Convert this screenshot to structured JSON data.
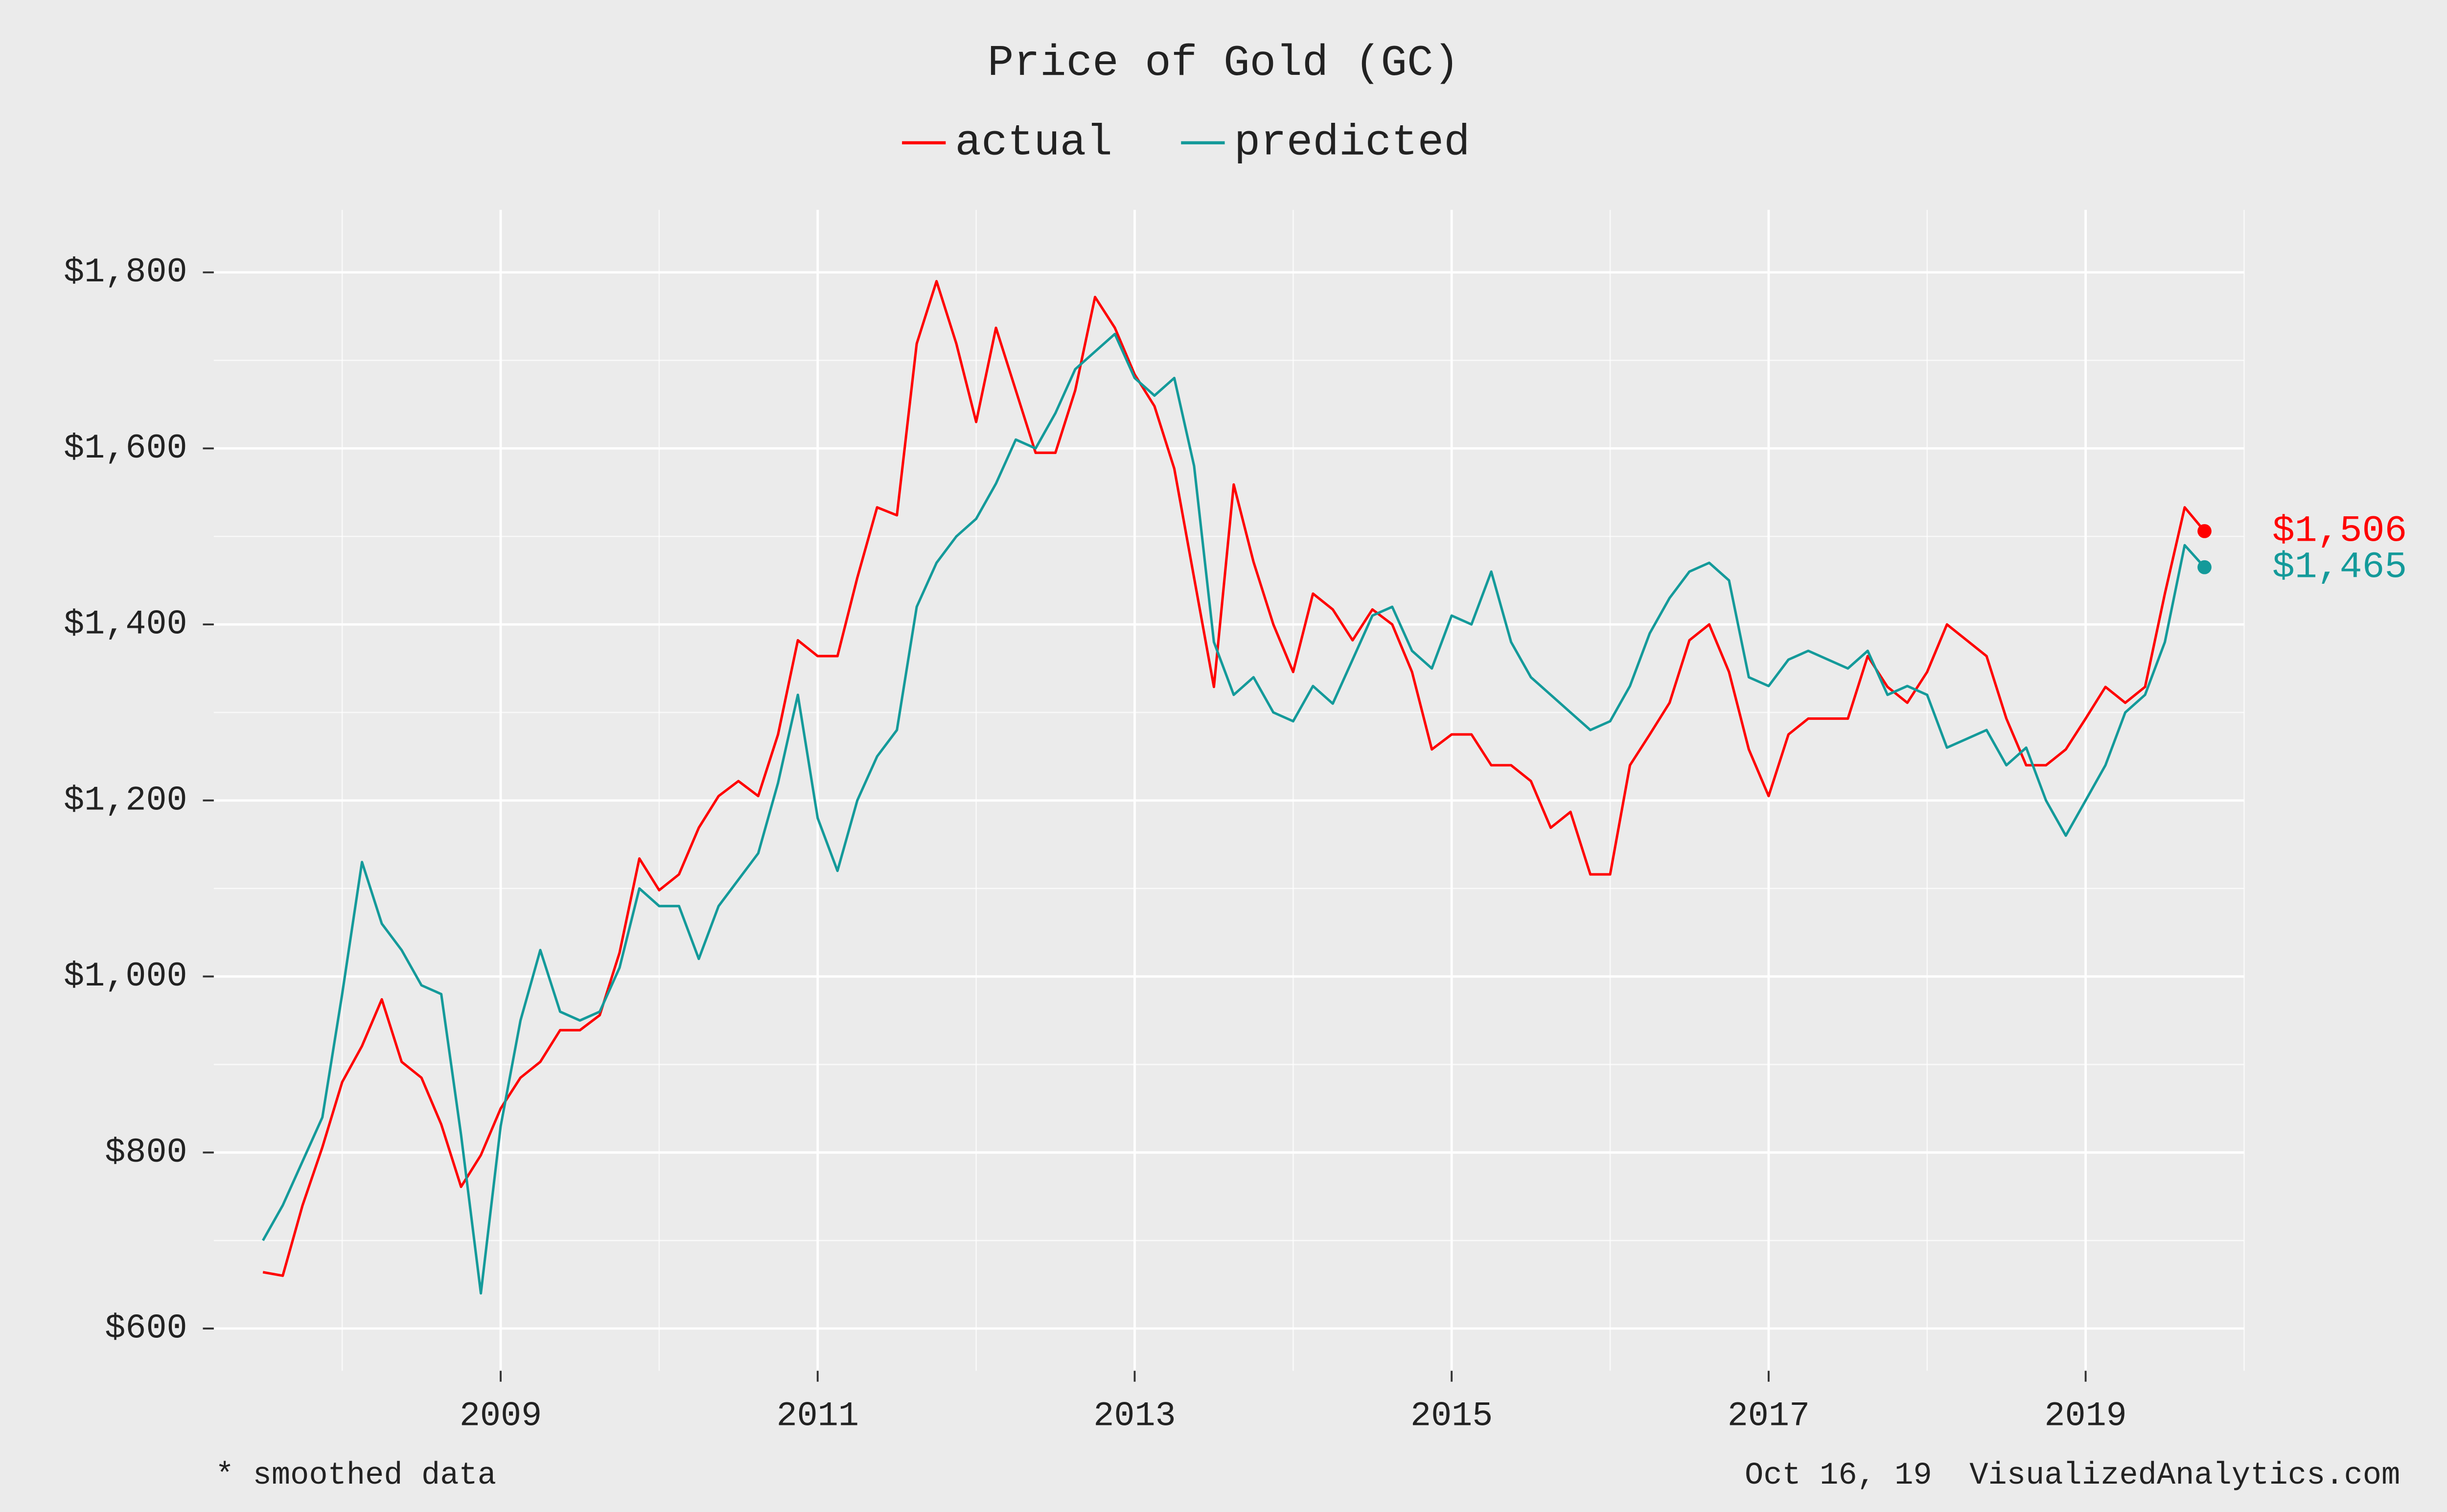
{
  "chart_data": {
    "type": "line",
    "title": "Price of Gold (GC)",
    "footnote": "* smoothed data",
    "credit": "Oct 16, 19  VisualizedAnalytics.com",
    "x": [
      2007.5,
      2007.625,
      2007.75,
      2007.875,
      2008,
      2008.125,
      2008.25,
      2008.375,
      2008.5,
      2008.625,
      2008.75,
      2008.875,
      2009,
      2009.125,
      2009.25,
      2009.375,
      2009.5,
      2009.625,
      2009.75,
      2009.875,
      2010,
      2010.125,
      2010.25,
      2010.375,
      2010.5,
      2010.625,
      2010.75,
      2010.875,
      2011,
      2011.125,
      2011.25,
      2011.375,
      2011.5,
      2011.625,
      2011.75,
      2011.875,
      2012,
      2012.125,
      2012.25,
      2012.375,
      2012.5,
      2012.625,
      2012.75,
      2012.875,
      2013,
      2013.125,
      2013.25,
      2013.375,
      2013.5,
      2013.625,
      2013.75,
      2013.875,
      2014,
      2014.125,
      2014.25,
      2014.375,
      2014.5,
      2014.625,
      2014.75,
      2014.875,
      2015,
      2015.125,
      2015.25,
      2015.375,
      2015.5,
      2015.625,
      2015.75,
      2015.875,
      2016,
      2016.125,
      2016.25,
      2016.375,
      2016.5,
      2016.625,
      2016.75,
      2016.875,
      2017,
      2017.125,
      2017.25,
      2017.375,
      2017.5,
      2017.625,
      2017.75,
      2017.875,
      2018,
      2018.125,
      2018.25,
      2018.375,
      2018.5,
      2018.625,
      2018.75,
      2018.875,
      2019,
      2019.125,
      2019.25,
      2019.375,
      2019.5,
      2019.625,
      2019.75
    ],
    "series": [
      {
        "name": "actual",
        "color": "#ff0000",
        "end_label": "$1,506",
        "values": [
          664,
          660,
          740,
          806,
          880,
          921,
          974,
          903,
          885,
          832,
          761,
          797,
          850,
          885,
          903,
          939,
          939,
          956,
          1027,
          1134,
          1098,
          1116,
          1169,
          1205,
          1222,
          1205,
          1275,
          1382,
          1364,
          1364,
          1453,
          1533,
          1524,
          1719,
          1790,
          1719,
          1630,
          1737,
          1666,
          1595,
          1595,
          1666,
          1772,
          1737,
          1684,
          1648,
          1577,
          1453,
          1329,
          1559,
          1471,
          1400,
          1346,
          1435,
          1417,
          1382,
          1417,
          1400,
          1346,
          1258,
          1275,
          1275,
          1240,
          1240,
          1222,
          1169,
          1187,
          1116,
          1116,
          1240,
          1275,
          1311,
          1382,
          1400,
          1346,
          1258,
          1205,
          1275,
          1293,
          1293,
          1293,
          1364,
          1329,
          1311,
          1346,
          1400,
          1382,
          1364,
          1293,
          1240,
          1240,
          1258,
          1293,
          1329,
          1311,
          1329,
          1435,
          1533,
          1506
        ]
      },
      {
        "name": "predicted",
        "color": "#149a9a",
        "end_label": "$1,465",
        "values": [
          700,
          740,
          790,
          840,
          980,
          1130,
          1060,
          1030,
          990,
          980,
          820,
          640,
          830,
          950,
          1030,
          960,
          950,
          960,
          1010,
          1100,
          1080,
          1080,
          1020,
          1080,
          1110,
          1140,
          1220,
          1320,
          1180,
          1120,
          1200,
          1250,
          1280,
          1420,
          1470,
          1500,
          1520,
          1560,
          1610,
          1600,
          1640,
          1690,
          1710,
          1730,
          1680,
          1660,
          1680,
          1580,
          1380,
          1320,
          1340,
          1300,
          1290,
          1330,
          1310,
          1360,
          1410,
          1420,
          1370,
          1350,
          1410,
          1400,
          1460,
          1380,
          1340,
          1320,
          1300,
          1280,
          1290,
          1330,
          1390,
          1430,
          1460,
          1470,
          1450,
          1340,
          1330,
          1360,
          1370,
          1360,
          1350,
          1370,
          1320,
          1330,
          1320,
          1260,
          1270,
          1280,
          1240,
          1260,
          1200,
          1160,
          1200,
          1240,
          1300,
          1320,
          1380,
          1490,
          1465
        ]
      }
    ],
    "xlim": [
      2007.19,
      2020.0
    ],
    "ylim": [
      552,
      1871
    ],
    "xticks": [
      2009,
      2011,
      2013,
      2015,
      2017,
      2019
    ],
    "yticks": [
      {
        "value": 600,
        "label": "$600"
      },
      {
        "value": 800,
        "label": "$800"
      },
      {
        "value": 1000,
        "label": "$1,000"
      },
      {
        "value": 1200,
        "label": "$1,200"
      },
      {
        "value": 1400,
        "label": "$1,400"
      },
      {
        "value": 1600,
        "label": "$1,600"
      },
      {
        "value": 1800,
        "label": "$1,800"
      }
    ],
    "grid": true
  }
}
